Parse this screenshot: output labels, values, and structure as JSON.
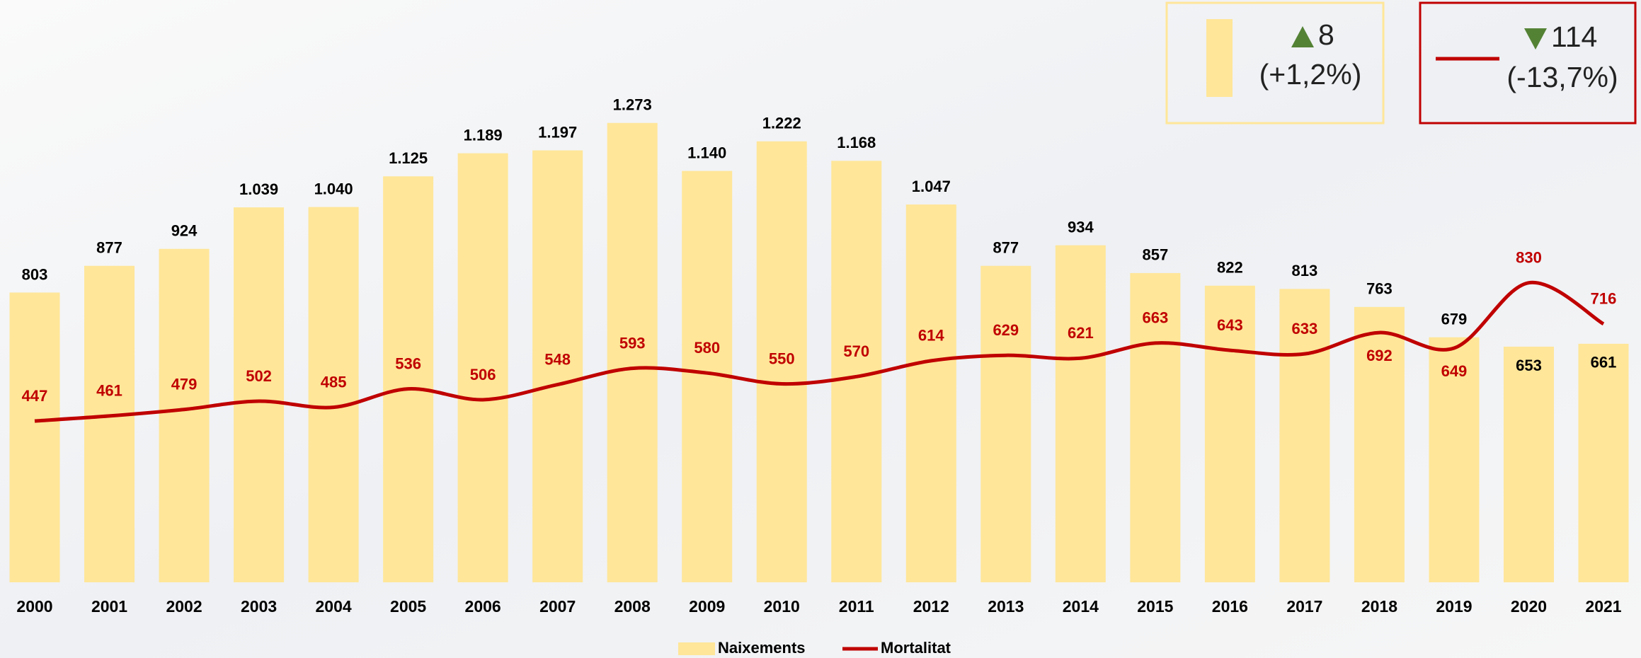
{
  "chart_data": {
    "type": "bar",
    "categories": [
      "2000",
      "2001",
      "2002",
      "2003",
      "2004",
      "2005",
      "2006",
      "2007",
      "2008",
      "2009",
      "2010",
      "2011",
      "2012",
      "2013",
      "2014",
      "2015",
      "2016",
      "2017",
      "2018",
      "2019",
      "2020",
      "2021"
    ],
    "series": [
      {
        "name": "Naixements",
        "type": "bar",
        "color": "#ffe699",
        "values": [
          803,
          877,
          924,
          1039,
          1040,
          1125,
          1189,
          1197,
          1273,
          1140,
          1222,
          1168,
          1047,
          877,
          934,
          857,
          822,
          813,
          763,
          679,
          653,
          661
        ],
        "value_labels": [
          "803",
          "877",
          "924",
          "1.039",
          "1.040",
          "1.125",
          "1.189",
          "1.197",
          "1.273",
          "1.140",
          "1.222",
          "1.168",
          "1.047",
          "877",
          "934",
          "857",
          "822",
          "813",
          "763",
          "679",
          "653",
          "661"
        ]
      },
      {
        "name": "Mortalitat",
        "type": "line",
        "color": "#c00000",
        "values": [
          447,
          461,
          479,
          502,
          485,
          536,
          506,
          548,
          593,
          580,
          550,
          570,
          614,
          629,
          621,
          663,
          643,
          633,
          692,
          649,
          830,
          716
        ]
      }
    ],
    "legend": "bottom",
    "annotations": [
      {
        "text": "8",
        "subtext": "(+1,2%)",
        "direction": "up"
      },
      {
        "text": "114",
        "subtext": "(-13,7%)",
        "direction": "down"
      }
    ]
  }
}
